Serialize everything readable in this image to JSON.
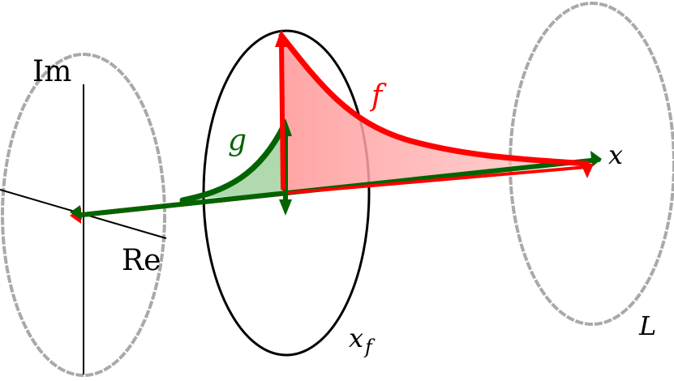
{
  "labels": {
    "im": "Im",
    "re": "Re",
    "f": "f",
    "g": "g",
    "x": "x",
    "xf_base": "x",
    "xf_sub": "f",
    "L": "L"
  },
  "colors": {
    "f": "#ff0000",
    "g": "#006400",
    "f_fill": "#ffaaaa",
    "g_fill": "#9ccf9c",
    "ring_gray": "#a9a9a9",
    "axis": "#000000"
  }
}
